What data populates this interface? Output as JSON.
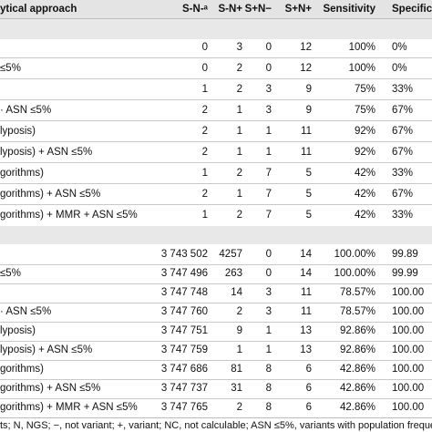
{
  "header": {
    "approach": "ytical approach",
    "sn": "S-N-ᵃ",
    "snp": "S-N+",
    "spn": "S+N−",
    "spnp": "S+N+",
    "sensitivity": "Sensitivity",
    "specificity": "Specific"
  },
  "groupA": [
    {
      "approach": "",
      "sn": "0",
      "snp": "3",
      "spn": "0",
      "spnp": "12",
      "sens": "100%",
      "spec": "0%"
    },
    {
      "approach": "≤5%",
      "sn": "0",
      "snp": "2",
      "spn": "0",
      "spnp": "12",
      "sens": "100%",
      "spec": "0%"
    },
    {
      "approach": "",
      "sn": "1",
      "snp": "2",
      "spn": "3",
      "spnp": "9",
      "sens": "75%",
      "spec": "33%"
    },
    {
      "approach": "· ASN ≤5%",
      "sn": "2",
      "snp": "1",
      "spn": "3",
      "spnp": "9",
      "sens": "75%",
      "spec": "67%"
    },
    {
      "approach": "lyposis)",
      "sn": "2",
      "snp": "1",
      "spn": "1",
      "spnp": "11",
      "sens": "92%",
      "spec": "67%"
    },
    {
      "approach": "lyposis) + ASN ≤5%",
      "sn": "2",
      "snp": "1",
      "spn": "1",
      "spnp": "11",
      "sens": "92%",
      "spec": "67%"
    },
    {
      "approach": "gorithms)",
      "sn": "1",
      "snp": "2",
      "spn": "7",
      "spnp": "5",
      "sens": "42%",
      "spec": "33%"
    },
    {
      "approach": "gorithms) + ASN ≤5%",
      "sn": "2",
      "snp": "1",
      "spn": "7",
      "spnp": "5",
      "sens": "42%",
      "spec": "67%"
    },
    {
      "approach": "gorithms) + MMR + ASN ≤5%",
      "sn": "1",
      "snp": "2",
      "spn": "7",
      "spnp": "5",
      "sens": "42%",
      "spec": "33%"
    }
  ],
  "groupB": [
    {
      "approach": "",
      "sn": "3 743 502",
      "snp": "4257",
      "spn": "0",
      "spnp": "14",
      "sens": "100.00%",
      "spec": "99.89"
    },
    {
      "approach": "≤5%",
      "sn": "3 747 496",
      "snp": "263",
      "spn": "0",
      "spnp": "14",
      "sens": "100.00%",
      "spec": "99.99"
    },
    {
      "approach": "",
      "sn": "3 747 748",
      "snp": "14",
      "spn": "3",
      "spnp": "11",
      "sens": "78.57%",
      "spec": "100.00"
    },
    {
      "approach": "· ASN ≤5%",
      "sn": "3 747 760",
      "snp": "2",
      "spn": "3",
      "spnp": "11",
      "sens": "78.57%",
      "spec": "100.00"
    },
    {
      "approach": "lyposis)",
      "sn": "3 747 751",
      "snp": "9",
      "spn": "1",
      "spnp": "13",
      "sens": "92.86%",
      "spec": "100.00"
    },
    {
      "approach": "lyposis) + ASN ≤5%",
      "sn": "3 747 759",
      "snp": "1",
      "spn": "1",
      "spnp": "13",
      "sens": "92.86%",
      "spec": "100.00"
    },
    {
      "approach": "gorithms)",
      "sn": "3 747 686",
      "snp": "81",
      "spn": "8",
      "spnp": "6",
      "sens": "42.86%",
      "spec": "100.00"
    },
    {
      "approach": "gorithms) + ASN ≤5%",
      "sn": "3 747 737",
      "snp": "31",
      "spn": "8",
      "spnp": "6",
      "sens": "42.86%",
      "spec": "100.00"
    },
    {
      "approach": "gorithms) + MMR + ASN ≤5%",
      "sn": "3 747 765",
      "snp": "2",
      "spn": "8",
      "spnp": "6",
      "sens": "42.86%",
      "spec": "100.00"
    }
  ],
  "footnote": "ts; N, NGS; −, not variant; +, variant; NC, not calculable; ASN ≤5%, variants with population frequen"
}
